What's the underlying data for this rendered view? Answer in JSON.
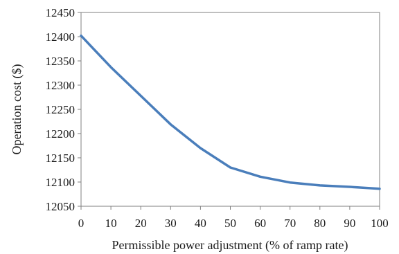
{
  "chart_data": {
    "type": "line",
    "title": "",
    "xlabel": "Permissible power adjustment (% of ramp rate)",
    "ylabel": "Operation cost ($)",
    "xlim": [
      0,
      100
    ],
    "ylim": [
      12050,
      12450
    ],
    "xticks": [
      0,
      10,
      20,
      30,
      40,
      50,
      60,
      70,
      80,
      90,
      100
    ],
    "yticks": [
      12050,
      12100,
      12150,
      12200,
      12250,
      12300,
      12350,
      12400,
      12450
    ],
    "grid": false,
    "legend": "none",
    "series": [
      {
        "color": "#4a7ebb",
        "x": [
          0,
          10,
          20,
          30,
          40,
          50,
          60,
          70,
          80,
          90,
          100
        ],
        "y": [
          12402,
          12337,
          12278,
          12219,
          12170,
          12130,
          12111,
          12099,
          12093,
          12090,
          12086
        ]
      }
    ]
  }
}
